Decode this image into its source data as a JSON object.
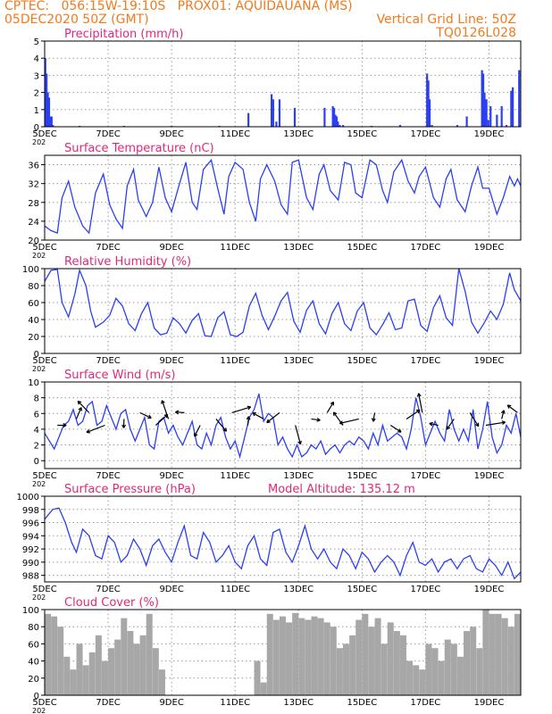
{
  "header": {
    "line1_left": "CPTEC:   056:15W-19:10S   PROX01: AQUIDAUANA (MS)",
    "line2_left": "05DEC2020 50Z (GMT)",
    "line2_right": "Vertical Grid Line: 50Z",
    "line3_right": "TQ0126L028",
    "year_fragment": "202"
  },
  "colors": {
    "header": "#f07a1e",
    "panel_title": "#e0287a",
    "series": "#2b3ff2",
    "cloud": "#a7a7a7",
    "grid": "#9a9a9a"
  },
  "chart_data": [
    {
      "type": "bar",
      "title": "Precipitation (mm/h)",
      "xlim": [
        0,
        15
      ],
      "ylim": [
        0,
        5
      ],
      "x_ticks": [
        {
          "x": 0,
          "label": "5DEC"
        },
        {
          "x": 2,
          "label": "7DEC"
        },
        {
          "x": 4,
          "label": "9DEC"
        },
        {
          "x": 6,
          "label": "11DEC"
        },
        {
          "x": 8,
          "label": "13DEC"
        },
        {
          "x": 10,
          "label": "15DEC"
        },
        {
          "x": 12,
          "label": "17DEC"
        },
        {
          "x": 14,
          "label": "19DEC"
        }
      ],
      "y_ticks": [
        0,
        1,
        2,
        3,
        4,
        5
      ],
      "x": [
        0.02,
        0.06,
        0.1,
        0.14,
        0.18,
        0.22,
        0.26,
        1.1,
        2.5,
        4.0,
        5.5,
        6.42,
        7.15,
        7.2,
        7.3,
        7.4,
        7.88,
        8.82,
        9.08,
        9.12,
        9.16,
        9.2,
        9.24,
        9.3,
        9.4,
        10.3,
        11.2,
        12.05,
        12.09,
        12.13,
        12.2,
        13.0,
        13.3,
        13.78,
        13.82,
        13.86,
        13.92,
        13.98,
        14.05,
        14.25,
        14.4,
        14.55,
        14.7,
        14.75,
        14.95
      ],
      "values": [
        4.0,
        3.1,
        2.0,
        1.7,
        0.6,
        0.6,
        0.1,
        0.05,
        0.05,
        0.05,
        0.05,
        0.8,
        1.9,
        1.6,
        0.3,
        1.6,
        1.1,
        1.1,
        1.2,
        1.1,
        0.7,
        0.6,
        0.3,
        0.1,
        0.1,
        0.05,
        0.1,
        3.1,
        2.7,
        1.6,
        0.1,
        0.1,
        0.6,
        3.3,
        3.1,
        2.0,
        1.6,
        0.4,
        1.2,
        0.7,
        1.2,
        0.1,
        2.1,
        2.3,
        3.3
      ]
    },
    {
      "type": "line",
      "title": "Surface Temperature (nC)",
      "xlim": [
        0,
        15
      ],
      "ylim": [
        20,
        38
      ],
      "x_ticks": [
        {
          "x": 0,
          "label": "5DEC"
        },
        {
          "x": 2,
          "label": "7DEC"
        },
        {
          "x": 4,
          "label": "9DEC"
        },
        {
          "x": 6,
          "label": "11DEC"
        },
        {
          "x": 8,
          "label": "13DEC"
        },
        {
          "x": 10,
          "label": "15DEC"
        },
        {
          "x": 12,
          "label": "17DEC"
        },
        {
          "x": 14,
          "label": "19DEC"
        }
      ],
      "y_ticks": [
        20,
        24,
        28,
        32,
        36
      ],
      "x": [
        0,
        0.2,
        0.4,
        0.55,
        0.75,
        0.95,
        1.2,
        1.4,
        1.6,
        1.85,
        2.05,
        2.25,
        2.45,
        2.6,
        2.8,
        2.95,
        3.2,
        3.4,
        3.6,
        3.8,
        4.0,
        4.25,
        4.45,
        4.65,
        4.8,
        5.0,
        5.25,
        5.45,
        5.65,
        5.8,
        6.0,
        6.25,
        6.45,
        6.65,
        6.8,
        7.0,
        7.25,
        7.45,
        7.65,
        7.8,
        8.0,
        8.25,
        8.45,
        8.65,
        8.8,
        9.0,
        9.25,
        9.45,
        9.65,
        9.8,
        10.0,
        10.25,
        10.45,
        10.65,
        10.8,
        11.0,
        11.25,
        11.45,
        11.65,
        11.8,
        12.0,
        12.25,
        12.45,
        12.65,
        12.8,
        13.0,
        13.25,
        13.45,
        13.65,
        13.8,
        14.0,
        14.25,
        14.45,
        14.65,
        14.8,
        14.9,
        15.0
      ],
      "values": [
        23.0,
        22.0,
        21.5,
        29.0,
        32.5,
        27.0,
        23.0,
        21.5,
        30.0,
        34.0,
        27.5,
        24.5,
        22.5,
        31.5,
        35.0,
        28.5,
        25.0,
        28.0,
        35.5,
        29.0,
        26.0,
        32.0,
        36.5,
        28.0,
        26.5,
        35.0,
        37.0,
        31.0,
        25.5,
        33.5,
        36.5,
        35.0,
        28.0,
        24.0,
        33.0,
        36.0,
        32.5,
        27.5,
        25.5,
        36.5,
        37.0,
        29.0,
        26.5,
        34.0,
        36.0,
        30.5,
        28.5,
        36.5,
        36.0,
        30.0,
        29.0,
        37.0,
        36.0,
        30.5,
        28.0,
        34.5,
        37.0,
        32.5,
        30.0,
        33.5,
        35.5,
        29.0,
        27.0,
        33.0,
        35.0,
        28.5,
        26.0,
        31.5,
        35.5,
        31.0,
        31.0,
        25.5,
        29.0,
        33.5,
        31.5,
        33.0,
        31.5
      ]
    },
    {
      "type": "line",
      "title": "Relative Humidity (%)",
      "xlim": [
        0,
        15
      ],
      "ylim": [
        0,
        100
      ],
      "x_ticks": [
        {
          "x": 0,
          "label": "5DEC"
        },
        {
          "x": 2,
          "label": "7DEC"
        },
        {
          "x": 4,
          "label": "9DEC"
        },
        {
          "x": 6,
          "label": "11DEC"
        },
        {
          "x": 8,
          "label": "13DEC"
        },
        {
          "x": 10,
          "label": "15DEC"
        },
        {
          "x": 12,
          "label": "17DEC"
        },
        {
          "x": 14,
          "label": "19DEC"
        }
      ],
      "y_ticks": [
        0,
        20,
        40,
        60,
        80,
        100
      ],
      "x": [
        0,
        0.2,
        0.4,
        0.55,
        0.75,
        0.95,
        1.1,
        1.3,
        1.45,
        1.6,
        1.85,
        2.05,
        2.25,
        2.45,
        2.65,
        2.85,
        3.05,
        3.25,
        3.45,
        3.65,
        3.85,
        4.05,
        4.25,
        4.45,
        4.65,
        4.85,
        5.05,
        5.25,
        5.45,
        5.65,
        5.85,
        6.05,
        6.25,
        6.45,
        6.65,
        6.85,
        7.05,
        7.25,
        7.45,
        7.65,
        7.85,
        8.05,
        8.25,
        8.45,
        8.65,
        8.85,
        9.05,
        9.25,
        9.45,
        9.65,
        9.85,
        10.05,
        10.25,
        10.45,
        10.65,
        10.85,
        11.05,
        11.25,
        11.45,
        11.65,
        11.85,
        12.05,
        12.25,
        12.45,
        12.65,
        12.85,
        13.05,
        13.25,
        13.45,
        13.65,
        13.85,
        14.05,
        14.25,
        14.45,
        14.65,
        14.8,
        15.0
      ],
      "values": [
        85,
        98,
        99,
        60,
        43,
        70,
        98,
        80,
        50,
        31,
        37,
        45,
        65,
        56,
        35,
        27,
        47,
        60,
        30,
        22,
        24,
        42,
        35,
        24,
        39,
        47,
        21,
        20,
        42,
        49,
        22,
        20,
        25,
        56,
        71,
        45,
        28,
        44,
        62,
        72,
        38,
        25,
        51,
        62,
        35,
        23,
        47,
        60,
        35,
        27,
        50,
        60,
        30,
        22,
        34,
        48,
        28,
        30,
        62,
        64,
        33,
        26,
        54,
        68,
        42,
        33,
        100,
        73,
        37,
        24,
        36,
        50,
        40,
        58,
        95,
        75,
        62
      ]
    },
    {
      "type": "line",
      "title": "Surface Wind (m/s)",
      "xlim": [
        0,
        15
      ],
      "ylim": [
        -1,
        10
      ],
      "x_ticks": [
        {
          "x": 0,
          "label": "5DEC"
        },
        {
          "x": 2,
          "label": "7DEC"
        },
        {
          "x": 4,
          "label": "9DEC"
        },
        {
          "x": 6,
          "label": "11DEC"
        },
        {
          "x": 8,
          "label": "13DEC"
        },
        {
          "x": 10,
          "label": "15DEC"
        },
        {
          "x": 12,
          "label": "17DEC"
        },
        {
          "x": 14,
          "label": "19DEC"
        }
      ],
      "y_ticks": [
        0,
        2,
        4,
        6,
        8,
        10
      ],
      "x": [
        0,
        0.15,
        0.3,
        0.45,
        0.6,
        0.75,
        0.9,
        1.05,
        1.2,
        1.35,
        1.5,
        1.65,
        1.8,
        1.95,
        2.1,
        2.25,
        2.4,
        2.55,
        2.7,
        2.85,
        3.0,
        3.15,
        3.3,
        3.45,
        3.6,
        3.75,
        3.9,
        4.05,
        4.2,
        4.35,
        4.5,
        4.65,
        4.8,
        4.95,
        5.1,
        5.25,
        5.4,
        5.55,
        5.7,
        5.85,
        6.0,
        6.15,
        6.3,
        6.45,
        6.6,
        6.75,
        6.9,
        7.05,
        7.2,
        7.35,
        7.5,
        7.65,
        7.8,
        7.95,
        8.1,
        8.25,
        8.4,
        8.55,
        8.7,
        8.85,
        9.0,
        9.15,
        9.3,
        9.45,
        9.6,
        9.75,
        9.9,
        10.05,
        10.2,
        10.35,
        10.5,
        10.65,
        10.8,
        10.95,
        11.1,
        11.25,
        11.4,
        11.55,
        11.7,
        11.85,
        12.0,
        12.15,
        12.3,
        12.45,
        12.6,
        12.75,
        12.9,
        13.05,
        13.2,
        13.35,
        13.5,
        13.65,
        13.8,
        13.95,
        14.1,
        14.25,
        14.4,
        14.55,
        14.7,
        14.85,
        15.0
      ],
      "values": [
        3.5,
        2.5,
        1.5,
        3.0,
        4.5,
        5.0,
        6.5,
        4.5,
        5.0,
        7.0,
        7.5,
        4.5,
        5.0,
        7.0,
        5.5,
        4.0,
        6.0,
        6.5,
        4.0,
        2.5,
        4.0,
        5.5,
        2.0,
        1.5,
        5.0,
        5.5,
        3.5,
        4.5,
        3.0,
        2.0,
        3.5,
        5.0,
        2.0,
        1.5,
        3.5,
        2.0,
        4.5,
        5.5,
        3.0,
        1.5,
        2.5,
        0.5,
        3.0,
        5.5,
        6.5,
        8.5,
        5.0,
        6.0,
        5.5,
        2.0,
        3.0,
        1.5,
        0.5,
        2.0,
        0.5,
        1.0,
        2.0,
        1.5,
        2.5,
        0.8,
        1.5,
        2.0,
        1.0,
        2.0,
        2.5,
        2.0,
        3.0,
        2.5,
        1.5,
        3.5,
        2.0,
        4.5,
        2.5,
        3.0,
        3.5,
        3.0,
        1.5,
        4.0,
        8.0,
        5.5,
        2.0,
        3.5,
        5.0,
        3.5,
        2.5,
        6.5,
        4.0,
        2.5,
        4.0,
        2.5,
        6.5,
        1.5,
        4.0,
        7.5,
        3.0,
        1.0,
        2.0,
        4.5,
        3.5,
        6.0,
        3.0
      ],
      "vector_x": [
        0.4,
        1.0,
        1.4,
        1.9,
        2.5,
        3.0,
        3.5,
        3.9,
        4.4,
        4.9,
        5.4,
        5.9,
        6.4,
        6.9,
        7.4,
        7.9,
        8.4,
        8.9,
        9.4,
        9.9,
        10.4,
        10.9,
        11.4,
        11.9,
        12.4,
        12.9,
        13.4,
        13.9,
        14.4,
        14.9
      ],
      "wind_barbs": "wind direction arrows"
    },
    {
      "type": "line",
      "title": "Surface Pressure (hPa)",
      "annotation": "Model Altitude: 135.12 m",
      "xlim": [
        0,
        15
      ],
      "ylim": [
        987,
        1000
      ],
      "x_ticks": [
        {
          "x": 0,
          "label": "5DEC"
        },
        {
          "x": 2,
          "label": "7DEC"
        },
        {
          "x": 4,
          "label": "9DEC"
        },
        {
          "x": 6,
          "label": "11DEC"
        },
        {
          "x": 8,
          "label": "13DEC"
        },
        {
          "x": 10,
          "label": "15DEC"
        },
        {
          "x": 12,
          "label": "17DEC"
        },
        {
          "x": 14,
          "label": "19DEC"
        }
      ],
      "y_ticks": [
        988,
        990,
        992,
        994,
        996,
        998,
        1000
      ],
      "x": [
        0,
        0.25,
        0.45,
        0.65,
        0.85,
        1.0,
        1.2,
        1.4,
        1.6,
        1.8,
        2.0,
        2.2,
        2.4,
        2.6,
        2.8,
        3.0,
        3.2,
        3.4,
        3.6,
        3.8,
        4.0,
        4.2,
        4.4,
        4.6,
        4.8,
        5.0,
        5.2,
        5.4,
        5.6,
        5.8,
        6.0,
        6.2,
        6.4,
        6.6,
        6.8,
        7.0,
        7.2,
        7.4,
        7.6,
        7.8,
        8.0,
        8.2,
        8.4,
        8.6,
        8.8,
        9.0,
        9.2,
        9.4,
        9.6,
        9.8,
        10.0,
        10.2,
        10.4,
        10.6,
        10.8,
        11.0,
        11.2,
        11.4,
        11.6,
        11.8,
        12.0,
        12.2,
        12.4,
        12.6,
        12.8,
        13.0,
        13.2,
        13.4,
        13.6,
        13.8,
        14.0,
        14.2,
        14.4,
        14.6,
        14.8,
        15.0
      ],
      "values": [
        996.5,
        998.0,
        998.2,
        996.0,
        993.0,
        991.5,
        995.0,
        994.0,
        991.0,
        990.5,
        994.0,
        993.0,
        990.0,
        991.0,
        993.5,
        992.0,
        989.5,
        992.5,
        993.5,
        991.5,
        990.0,
        993.0,
        995.5,
        991.0,
        990.5,
        994.5,
        993.0,
        990.0,
        991.0,
        992.5,
        990.0,
        989.0,
        992.5,
        994.0,
        990.5,
        989.5,
        994.5,
        995.0,
        991.5,
        990.0,
        992.5,
        995.5,
        992.0,
        990.5,
        992.0,
        990.0,
        989.0,
        992.0,
        991.0,
        989.0,
        991.5,
        990.5,
        988.5,
        990.0,
        991.0,
        990.0,
        988.0,
        991.0,
        993.0,
        990.0,
        989.5,
        990.5,
        988.5,
        990.0,
        990.5,
        989.0,
        990.5,
        991.0,
        989.0,
        988.5,
        990.5,
        989.5,
        988.0,
        990.0,
        987.5,
        988.5
      ]
    },
    {
      "type": "bar",
      "title": "Cloud Cover (%)",
      "xlim": [
        0,
        15
      ],
      "ylim": [
        0,
        100
      ],
      "x_ticks": [
        {
          "x": 0,
          "label": "5DEC"
        },
        {
          "x": 2,
          "label": "7DEC"
        },
        {
          "x": 4,
          "label": "9DEC"
        },
        {
          "x": 6,
          "label": "11DEC"
        },
        {
          "x": 8,
          "label": "13DEC"
        },
        {
          "x": 10,
          "label": "15DEC"
        },
        {
          "x": 12,
          "label": "17DEC"
        },
        {
          "x": 14,
          "label": "19DEC"
        }
      ],
      "y_ticks": [
        0,
        20,
        40,
        60,
        80,
        100
      ],
      "x": [
        0,
        0.2,
        0.4,
        0.6,
        0.8,
        1.0,
        1.2,
        1.4,
        1.6,
        1.8,
        2.0,
        2.2,
        2.4,
        2.6,
        2.8,
        3.0,
        3.2,
        3.4,
        3.6,
        3.8,
        4.0,
        4.2,
        4.4,
        4.6,
        4.8,
        5.0,
        5.2,
        5.4,
        5.6,
        5.8,
        6.0,
        6.2,
        6.4,
        6.6,
        6.8,
        7.0,
        7.2,
        7.4,
        7.6,
        7.8,
        8.0,
        8.2,
        8.4,
        8.6,
        8.8,
        9.0,
        9.2,
        9.4,
        9.6,
        9.8,
        10.0,
        10.2,
        10.4,
        10.6,
        10.8,
        11.0,
        11.2,
        11.4,
        11.6,
        11.8,
        12.0,
        12.2,
        12.4,
        12.6,
        12.8,
        13.0,
        13.2,
        13.4,
        13.6,
        13.8,
        14.0,
        14.2,
        14.4,
        14.6,
        14.8,
        15.0
      ],
      "values": [
        95,
        92,
        80,
        45,
        30,
        60,
        35,
        50,
        70,
        40,
        55,
        65,
        90,
        75,
        60,
        70,
        95,
        55,
        30,
        0,
        0,
        0,
        0,
        0,
        0,
        0,
        0,
        0,
        0,
        0,
        0,
        0,
        0,
        40,
        15,
        95,
        88,
        92,
        85,
        96,
        90,
        88,
        92,
        90,
        85,
        80,
        55,
        60,
        70,
        88,
        95,
        80,
        90,
        60,
        85,
        75,
        70,
        40,
        35,
        30,
        60,
        55,
        40,
        65,
        60,
        45,
        75,
        80,
        55,
        100,
        95,
        95,
        90,
        80,
        95,
        85
      ]
    }
  ]
}
